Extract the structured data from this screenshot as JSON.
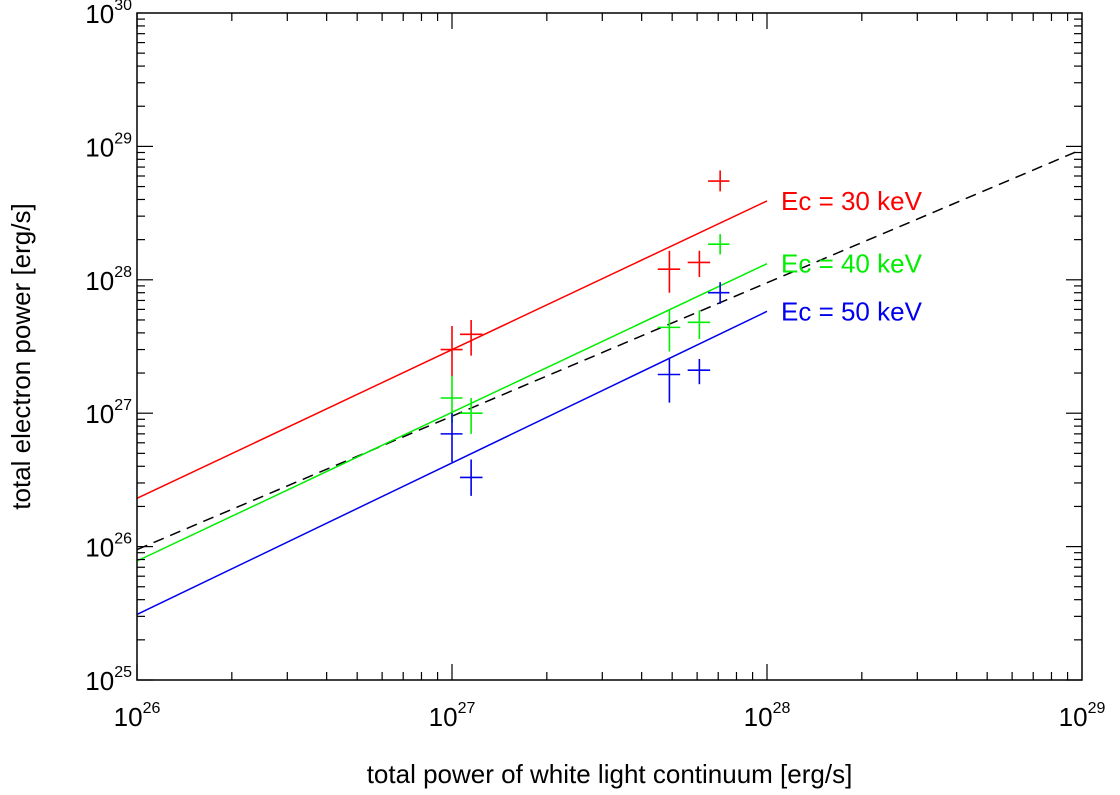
{
  "chart_data": {
    "type": "scatter",
    "title": "",
    "xlabel": "total power of white light continuum [erg/s]",
    "ylabel": "total electron power [erg/s]",
    "xscale": "log",
    "yscale": "log",
    "xlim": [
      1e+26,
      1e+29
    ],
    "ylim": [
      1e+25,
      1e+30
    ],
    "xticks": [
      {
        "base": "10",
        "exp": "26",
        "value": 1e+26
      },
      {
        "base": "10",
        "exp": "27",
        "value": 1e+27
      },
      {
        "base": "10",
        "exp": "28",
        "value": 1e+28
      },
      {
        "base": "10",
        "exp": "29",
        "value": 1e+29
      }
    ],
    "yticks": [
      {
        "base": "10",
        "exp": "25",
        "value": 1e+25
      },
      {
        "base": "10",
        "exp": "26",
        "value": 1e+26
      },
      {
        "base": "10",
        "exp": "27",
        "value": 1e+27
      },
      {
        "base": "10",
        "exp": "28",
        "value": 1e+28
      },
      {
        "base": "10",
        "exp": "29",
        "value": 1e+29
      },
      {
        "base": "10",
        "exp": "30",
        "value": 1e+30
      }
    ],
    "grid": false,
    "series": [
      {
        "name": "Ec = 30 keV",
        "color": "#ff0000",
        "points": [
          {
            "x": 1e+27,
            "x_lo": 9.2e+26,
            "x_hi": 1.08e+27,
            "y": 3e+27,
            "y_lo": 1.9e+27,
            "y_hi": 4.5e+27
          },
          {
            "x": 1.15e+27,
            "x_lo": 1.06e+27,
            "x_hi": 1.25e+27,
            "y": 3.9e+27,
            "y_lo": 2.7e+27,
            "y_hi": 5e+27
          },
          {
            "x": 4.9e+27,
            "x_lo": 4.5e+27,
            "x_hi": 5.3e+27,
            "y": 1.2e+28,
            "y_lo": 8e+27,
            "y_hi": 1.65e+28
          },
          {
            "x": 6.1e+27,
            "x_lo": 5.6e+27,
            "x_hi": 6.6e+27,
            "y": 1.35e+28,
            "y_lo": 1.05e+28,
            "y_hi": 1.65e+28
          },
          {
            "x": 7.1e+27,
            "x_lo": 6.5e+27,
            "x_hi": 7.6e+27,
            "y": 5.5e+28,
            "y_lo": 4.6e+28,
            "y_hi": 6.6e+28
          }
        ],
        "fit_line": {
          "x": [
            1e+26,
            1e+28
          ],
          "y": [
            2.3e+26,
            3.9e+28
          ]
        }
      },
      {
        "name": "Ec = 40 keV",
        "color": "#00ee00",
        "points": [
          {
            "x": 1e+27,
            "x_lo": 9.2e+26,
            "x_hi": 1.08e+27,
            "y": 1.3e+27,
            "y_lo": 8.5e+26,
            "y_hi": 1.9e+27
          },
          {
            "x": 1.15e+27,
            "x_lo": 1.06e+27,
            "x_hi": 1.25e+27,
            "y": 1e+27,
            "y_lo": 7e+26,
            "y_hi": 1.3e+27
          },
          {
            "x": 4.9e+27,
            "x_lo": 4.5e+27,
            "x_hi": 5.3e+27,
            "y": 4.4e+27,
            "y_lo": 2.9e+27,
            "y_hi": 6e+27
          },
          {
            "x": 6.1e+27,
            "x_lo": 5.6e+27,
            "x_hi": 6.6e+27,
            "y": 4.8e+27,
            "y_lo": 3.6e+27,
            "y_hi": 5.9e+27
          },
          {
            "x": 7.1e+27,
            "x_lo": 6.5e+27,
            "x_hi": 7.6e+27,
            "y": 1.85e+28,
            "y_lo": 1.55e+28,
            "y_hi": 2.2e+28
          }
        ],
        "fit_line": {
          "x": [
            1e+26,
            1e+28
          ],
          "y": [
            7.8e+25,
            1.32e+28
          ]
        }
      },
      {
        "name": "Ec = 50 keV",
        "color": "#0000ee",
        "points": [
          {
            "x": 1e+27,
            "x_lo": 9.2e+26,
            "x_hi": 1.08e+27,
            "y": 7e+26,
            "y_lo": 4.3e+26,
            "y_hi": 1e+27
          },
          {
            "x": 1.15e+27,
            "x_lo": 1.06e+27,
            "x_hi": 1.25e+27,
            "y": 3.3e+26,
            "y_lo": 2.4e+26,
            "y_hi": 4.5e+26
          },
          {
            "x": 4.9e+27,
            "x_lo": 4.5e+27,
            "x_hi": 5.3e+27,
            "y": 1.95e+27,
            "y_lo": 1.2e+27,
            "y_hi": 2.6e+27
          },
          {
            "x": 6.1e+27,
            "x_lo": 5.6e+27,
            "x_hi": 6.6e+27,
            "y": 2.1e+27,
            "y_lo": 1.65e+27,
            "y_hi": 2.55e+27
          },
          {
            "x": 7.1e+27,
            "x_lo": 6.5e+27,
            "x_hi": 7.6e+27,
            "y": 8e+27,
            "y_lo": 6.6e+27,
            "y_hi": 9.6e+27
          }
        ],
        "fit_line": {
          "x": [
            1e+26,
            1e+28
          ],
          "y": [
            3.1e+25,
            5.8e+27
          ]
        }
      }
    ],
    "reference_line": {
      "style": "dashed",
      "color": "#000000",
      "x": [
        1e+26,
        1e+29
      ],
      "y": [
        9.5e+25,
        9.5e+28
      ]
    }
  }
}
